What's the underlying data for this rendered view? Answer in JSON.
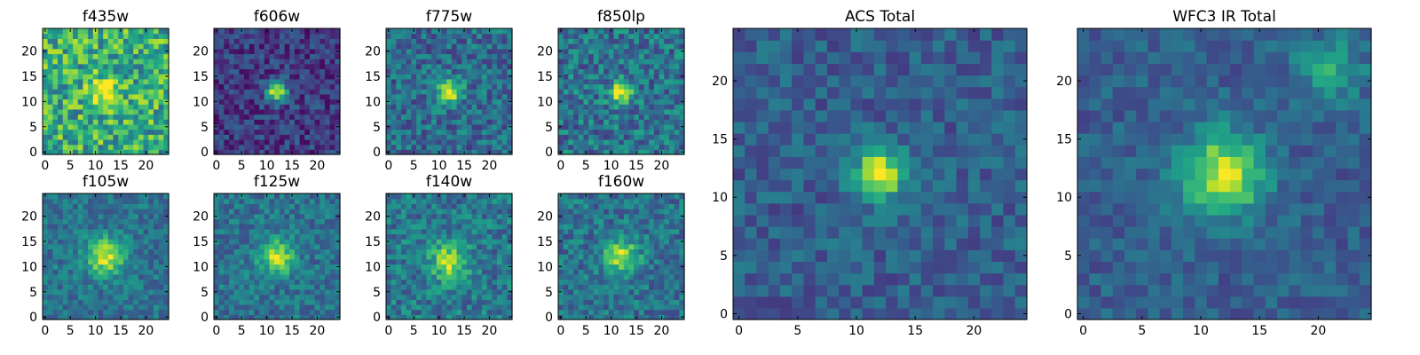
{
  "figure": {
    "panels": [
      {
        "title": "f435w",
        "xticks": [
          "0",
          "5",
          "10",
          "15",
          "20"
        ],
        "yticks": [
          "0",
          "5",
          "10",
          "15",
          "20"
        ],
        "peak": [
          12,
          12
        ],
        "sigma": 2.0,
        "amp": 0.45,
        "base": 0.62,
        "noise": 0.55,
        "seed": 11
      },
      {
        "title": "f606w",
        "xticks": [
          "0",
          "5",
          "10",
          "15",
          "20"
        ],
        "yticks": [
          "0",
          "5",
          "10",
          "15",
          "20"
        ],
        "peak": [
          12,
          12
        ],
        "sigma": 1.5,
        "amp": 0.75,
        "base": 0.18,
        "noise": 0.32,
        "seed": 23
      },
      {
        "title": "f775w",
        "xticks": [
          "0",
          "5",
          "10",
          "15",
          "20"
        ],
        "yticks": [
          "0",
          "5",
          "10",
          "15",
          "20"
        ],
        "peak": [
          12,
          12
        ],
        "sigma": 1.7,
        "amp": 0.62,
        "base": 0.35,
        "noise": 0.38,
        "seed": 37
      },
      {
        "title": "f850lp",
        "xticks": [
          "0",
          "5",
          "10",
          "15",
          "20"
        ],
        "yticks": [
          "0",
          "5",
          "10",
          "15",
          "20"
        ],
        "peak": [
          12,
          12
        ],
        "sigma": 1.6,
        "amp": 0.58,
        "base": 0.38,
        "noise": 0.42,
        "seed": 41
      },
      {
        "title": "f105w",
        "xticks": [
          "0",
          "5",
          "10",
          "15",
          "20"
        ],
        "yticks": [
          "0",
          "5",
          "10",
          "15",
          "20"
        ],
        "peak": [
          12,
          12
        ],
        "sigma": 2.6,
        "amp": 0.55,
        "base": 0.38,
        "noise": 0.28,
        "seed": 53
      },
      {
        "title": "f125w",
        "xticks": [
          "0",
          "5",
          "10",
          "15",
          "20"
        ],
        "yticks": [
          "0",
          "5",
          "10",
          "15",
          "20"
        ],
        "peak": [
          12,
          12
        ],
        "sigma": 2.4,
        "amp": 0.52,
        "base": 0.38,
        "noise": 0.3,
        "seed": 67
      },
      {
        "title": "f140w",
        "xticks": [
          "0",
          "5",
          "10",
          "15",
          "20"
        ],
        "yticks": [
          "0",
          "5",
          "10",
          "15",
          "20"
        ],
        "peak": [
          12,
          11
        ],
        "sigma": 2.6,
        "amp": 0.48,
        "base": 0.4,
        "noise": 0.36,
        "seed": 71
      },
      {
        "title": "f160w",
        "xticks": [
          "0",
          "5",
          "10",
          "15",
          "20"
        ],
        "yticks": [
          "0",
          "5",
          "10",
          "15",
          "20"
        ],
        "peak": [
          12,
          12
        ],
        "sigma": 2.3,
        "amp": 0.55,
        "base": 0.38,
        "noise": 0.34,
        "seed": 83
      },
      {
        "title": "ACS Total",
        "xticks": [
          "0",
          "5",
          "10",
          "15",
          "20"
        ],
        "yticks": [
          "0",
          "5",
          "10",
          "15",
          "20"
        ],
        "peak": [
          12,
          12
        ],
        "sigma": 1.5,
        "amp": 0.7,
        "base": 0.3,
        "noise": 0.26,
        "seed": 97
      },
      {
        "title": "WFC3 IR Total",
        "xticks": [
          "0",
          "5",
          "10",
          "15",
          "20"
        ],
        "yticks": [
          "0",
          "5",
          "10",
          "15",
          "20"
        ],
        "peak": [
          12,
          12
        ],
        "sigma": 2.4,
        "amp": 0.65,
        "base": 0.3,
        "noise": 0.22,
        "seed": 101
      }
    ],
    "colormap": [
      "#440154",
      "#482475",
      "#414487",
      "#355f8d",
      "#2a788e",
      "#21918c",
      "#22a884",
      "#44bf70",
      "#7ad151",
      "#bddf26",
      "#fde725"
    ]
  }
}
